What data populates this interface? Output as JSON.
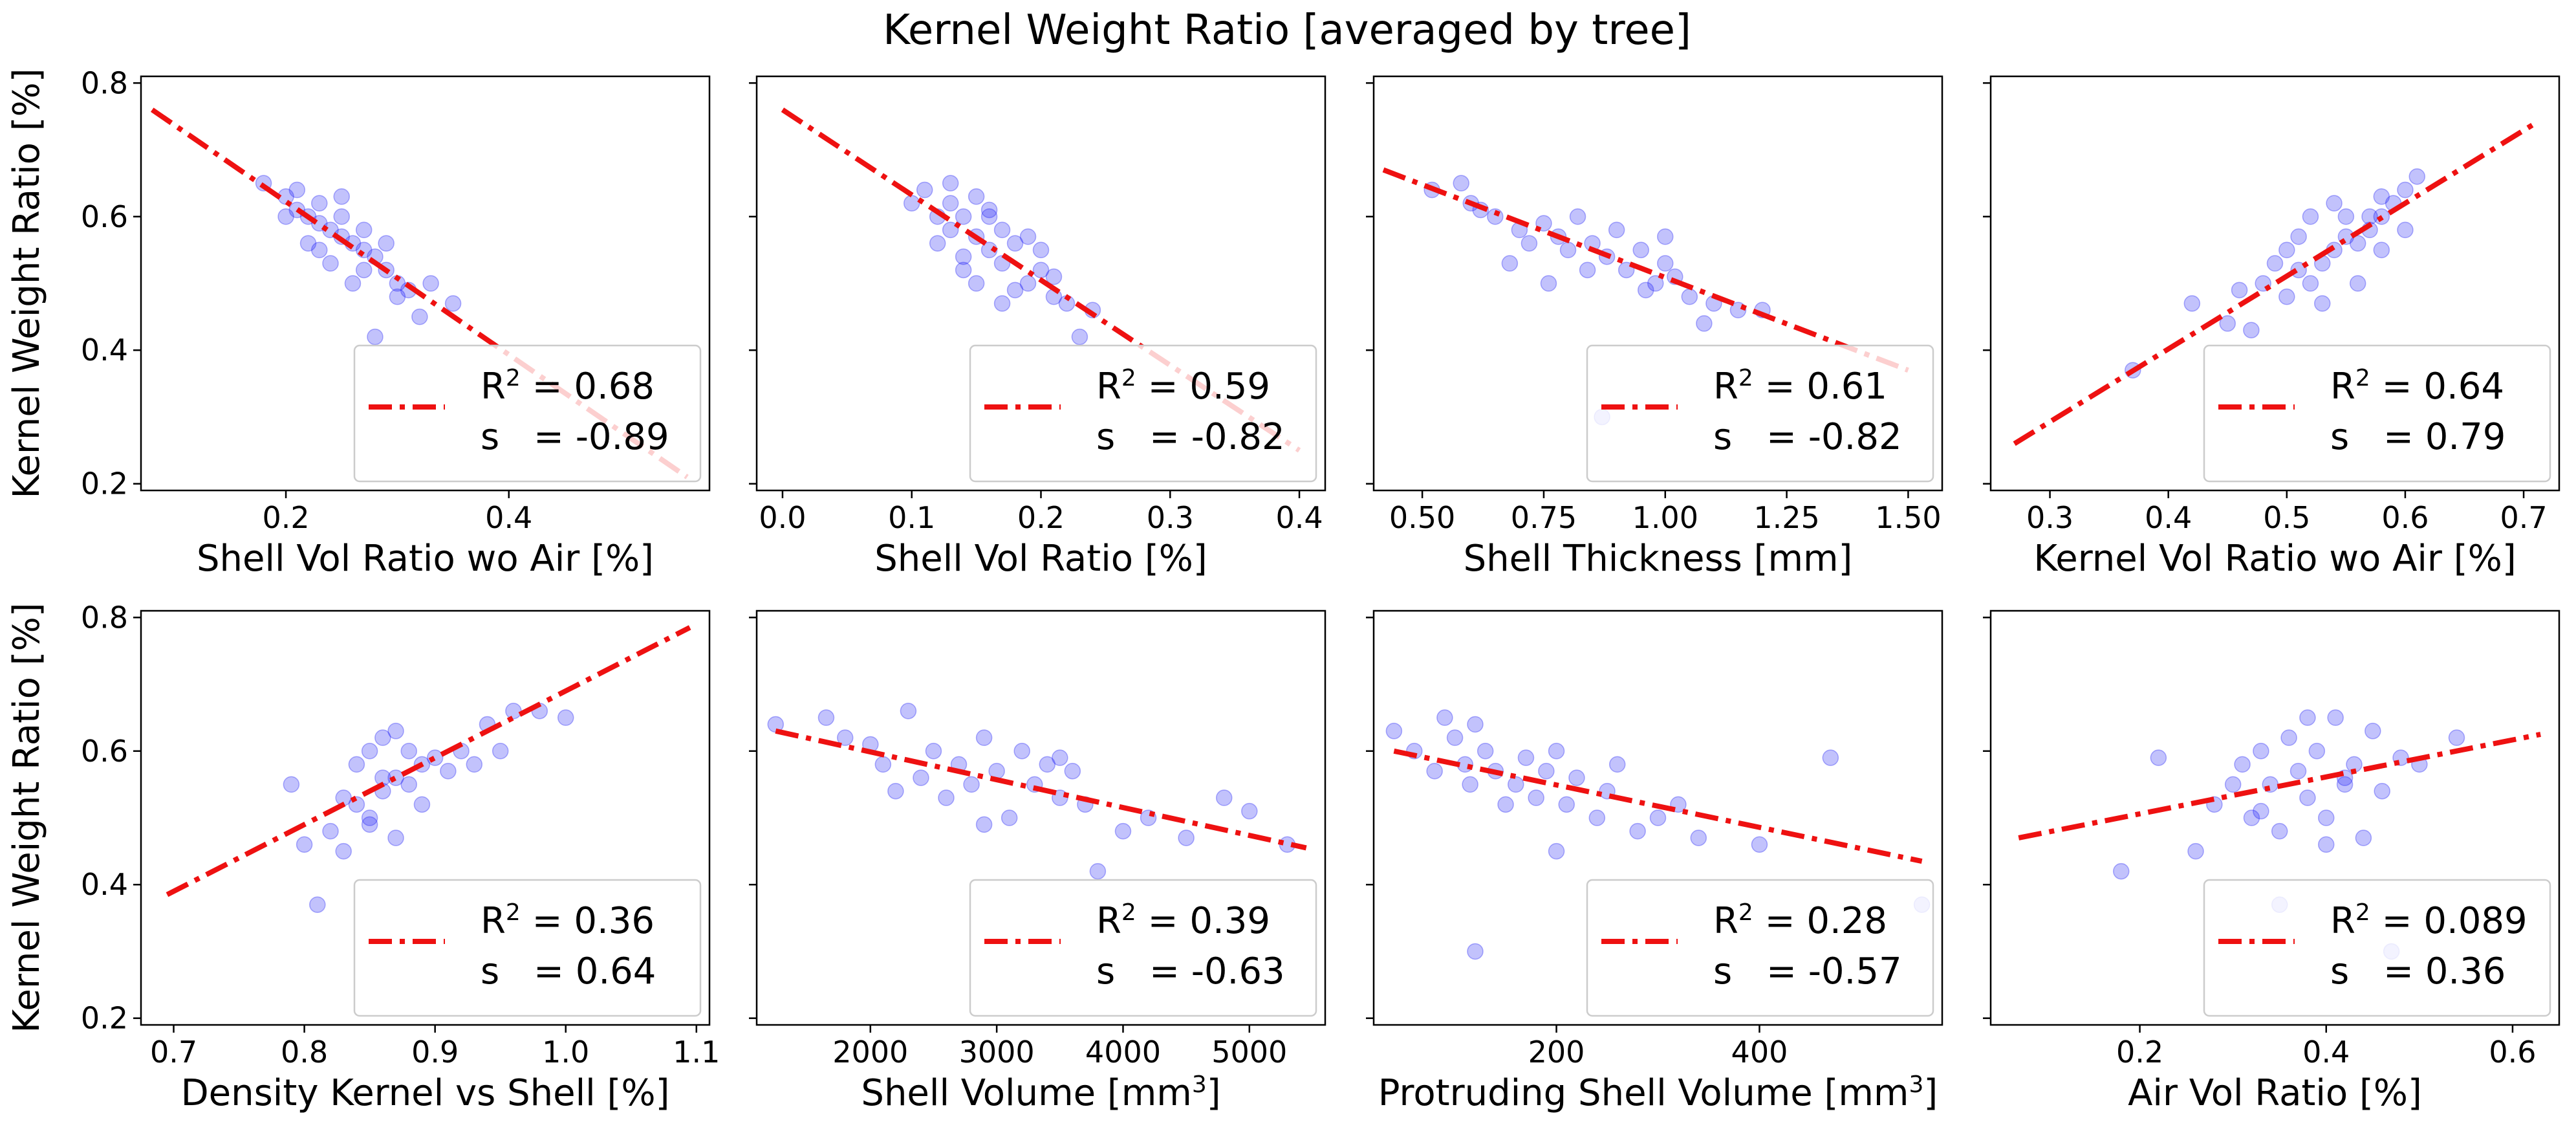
{
  "figure": {
    "title": "Kernel Weight Ratio [averaged by tree]"
  },
  "chart_data": [
    {
      "type": "scatter",
      "xlabel": "Shell Vol Ratio wo Air [%]",
      "ylabel": "Kernel Weight Ratio [%]",
      "xlim": [
        0.07,
        0.58
      ],
      "ylim": [
        0.19,
        0.81
      ],
      "xticks": [
        0.2,
        0.4
      ],
      "xtick_labels": [
        "0.2",
        "0.4"
      ],
      "yticks": [
        0.2,
        0.4,
        0.6,
        0.8
      ],
      "ytick_labels": [
        "0.2",
        "0.4",
        "0.6",
        "0.8"
      ],
      "fit": {
        "x": [
          0.08,
          0.56
        ],
        "y": [
          0.76,
          0.21
        ]
      },
      "legend": {
        "r2_label": "R",
        "r2_sup": "2",
        "r2_value": "= 0.68",
        "s_label": "s",
        "s_value": "= -0.89"
      },
      "series": [
        {
          "x": [
            0.18,
            0.2,
            0.21,
            0.21,
            0.22,
            0.23,
            0.23,
            0.24,
            0.25,
            0.25,
            0.26,
            0.27,
            0.28,
            0.29,
            0.3,
            0.31,
            0.35,
            0.28,
            0.26,
            0.22,
            0.24,
            0.27,
            0.29,
            0.33,
            0.2,
            0.23,
            0.25,
            0.27,
            0.3,
            0.32
          ],
          "y": [
            0.65,
            0.63,
            0.61,
            0.64,
            0.6,
            0.59,
            0.62,
            0.58,
            0.57,
            0.6,
            0.56,
            0.55,
            0.54,
            0.52,
            0.5,
            0.49,
            0.47,
            0.42,
            0.5,
            0.56,
            0.53,
            0.58,
            0.56,
            0.5,
            0.6,
            0.55,
            0.63,
            0.52,
            0.48,
            0.45
          ]
        }
      ]
    },
    {
      "type": "scatter",
      "xlabel": "Shell Vol Ratio [%]",
      "ylabel": "",
      "xlim": [
        -0.02,
        0.42
      ],
      "ylim": [
        0.19,
        0.81
      ],
      "xticks": [
        0.0,
        0.1,
        0.2,
        0.3,
        0.4
      ],
      "xtick_labels": [
        "0.0",
        "0.1",
        "0.2",
        "0.3",
        "0.4"
      ],
      "yticks": [
        0.2,
        0.4,
        0.6,
        0.8
      ],
      "ytick_labels": [
        "",
        "",
        "",
        ""
      ],
      "fit": {
        "x": [
          0.0,
          0.4
        ],
        "y": [
          0.76,
          0.25
        ]
      },
      "legend": {
        "r2_label": "R",
        "r2_sup": "2",
        "r2_value": "= 0.59",
        "s_label": "s",
        "s_value": "= -0.82"
      },
      "series": [
        {
          "x": [
            0.1,
            0.11,
            0.12,
            0.13,
            0.13,
            0.14,
            0.15,
            0.15,
            0.16,
            0.17,
            0.17,
            0.18,
            0.19,
            0.2,
            0.21,
            0.22,
            0.24,
            0.12,
            0.14,
            0.16,
            0.18,
            0.2,
            0.15,
            0.13,
            0.17,
            0.19,
            0.21,
            0.23,
            0.14,
            0.16
          ],
          "y": [
            0.62,
            0.64,
            0.6,
            0.62,
            0.58,
            0.6,
            0.57,
            0.63,
            0.55,
            0.58,
            0.53,
            0.56,
            0.5,
            0.52,
            0.48,
            0.47,
            0.46,
            0.56,
            0.52,
            0.6,
            0.49,
            0.55,
            0.5,
            0.65,
            0.47,
            0.57,
            0.51,
            0.42,
            0.54,
            0.61
          ]
        }
      ]
    },
    {
      "type": "scatter",
      "xlabel": "Shell Thickness [mm]",
      "ylabel": "",
      "xlim": [
        0.4,
        1.57
      ],
      "ylim": [
        0.19,
        0.81
      ],
      "xticks": [
        0.5,
        0.75,
        1.0,
        1.25,
        1.5
      ],
      "xtick_labels": [
        "0.50",
        "0.75",
        "1.00",
        "1.25",
        "1.50"
      ],
      "yticks": [
        0.2,
        0.4,
        0.6,
        0.8
      ],
      "ytick_labels": [
        "",
        "",
        "",
        ""
      ],
      "fit": {
        "x": [
          0.42,
          1.5
        ],
        "y": [
          0.67,
          0.37
        ]
      },
      "legend": {
        "r2_label": "R",
        "r2_sup": "2",
        "r2_value": "= 0.61",
        "s_label": "s",
        "s_value": "= -0.82"
      },
      "series": [
        {
          "x": [
            0.52,
            0.58,
            0.62,
            0.65,
            0.7,
            0.72,
            0.75,
            0.78,
            0.8,
            0.82,
            0.85,
            0.88,
            0.9,
            0.92,
            0.95,
            0.98,
            1.0,
            1.02,
            1.05,
            1.1,
            1.15,
            1.2,
            0.68,
            0.76,
            0.84,
            0.96,
            1.08,
            0.6,
            0.87,
            1.0
          ],
          "y": [
            0.64,
            0.65,
            0.61,
            0.6,
            0.58,
            0.56,
            0.59,
            0.57,
            0.55,
            0.6,
            0.56,
            0.54,
            0.58,
            0.52,
            0.55,
            0.5,
            0.53,
            0.51,
            0.48,
            0.47,
            0.46,
            0.46,
            0.53,
            0.5,
            0.52,
            0.49,
            0.44,
            0.62,
            0.3,
            0.57
          ]
        }
      ]
    },
    {
      "type": "scatter",
      "xlabel": "Kernel Vol Ratio wo Air [%]",
      "ylabel": "",
      "xlim": [
        0.25,
        0.73
      ],
      "ylim": [
        0.19,
        0.81
      ],
      "xticks": [
        0.3,
        0.4,
        0.5,
        0.6,
        0.7
      ],
      "xtick_labels": [
        "0.3",
        "0.4",
        "0.5",
        "0.6",
        "0.7"
      ],
      "yticks": [
        0.2,
        0.4,
        0.6,
        0.8
      ],
      "ytick_labels": [
        "",
        "",
        "",
        ""
      ],
      "fit": {
        "x": [
          0.27,
          0.71
        ],
        "y": [
          0.26,
          0.74
        ]
      },
      "legend": {
        "r2_label": "R",
        "r2_sup": "2",
        "r2_value": "= 0.64",
        "s_label": "s",
        "s_value": "= 0.79"
      },
      "series": [
        {
          "x": [
            0.37,
            0.42,
            0.45,
            0.47,
            0.48,
            0.5,
            0.5,
            0.51,
            0.52,
            0.52,
            0.53,
            0.54,
            0.55,
            0.55,
            0.56,
            0.57,
            0.58,
            0.58,
            0.59,
            0.6,
            0.61,
            0.49,
            0.53,
            0.56,
            0.58,
            0.51,
            0.54,
            0.57,
            0.6,
            0.46
          ],
          "y": [
            0.37,
            0.47,
            0.44,
            0.43,
            0.5,
            0.48,
            0.55,
            0.52,
            0.5,
            0.6,
            0.53,
            0.55,
            0.57,
            0.6,
            0.56,
            0.58,
            0.6,
            0.63,
            0.62,
            0.64,
            0.66,
            0.53,
            0.47,
            0.5,
            0.55,
            0.57,
            0.62,
            0.6,
            0.58,
            0.49
          ]
        }
      ]
    },
    {
      "type": "scatter",
      "xlabel": "Density Kernel vs Shell [%]",
      "ylabel": "Kernel Weight Ratio [%]",
      "xlim": [
        0.675,
        1.11
      ],
      "ylim": [
        0.19,
        0.81
      ],
      "xticks": [
        0.7,
        0.8,
        0.9,
        1.0,
        1.1
      ],
      "xtick_labels": [
        "0.7",
        "0.8",
        "0.9",
        "1.0",
        "1.1"
      ],
      "yticks": [
        0.2,
        0.4,
        0.6,
        0.8
      ],
      "ytick_labels": [
        "0.2",
        "0.4",
        "0.6",
        "0.8"
      ],
      "fit": {
        "x": [
          0.695,
          1.095
        ],
        "y": [
          0.385,
          0.785
        ]
      },
      "legend": {
        "r2_label": "R",
        "r2_sup": "2",
        "r2_value": "= 0.36",
        "s_label": "s",
        "s_value": "= 0.64"
      },
      "series": [
        {
          "x": [
            0.79,
            0.8,
            0.81,
            0.82,
            0.83,
            0.84,
            0.84,
            0.85,
            0.85,
            0.86,
            0.86,
            0.87,
            0.87,
            0.88,
            0.88,
            0.89,
            0.9,
            0.91,
            0.92,
            0.94,
            0.96,
            0.98,
            1.0,
            0.83,
            0.85,
            0.86,
            0.87,
            0.89,
            0.93,
            0.95
          ],
          "y": [
            0.55,
            0.46,
            0.37,
            0.48,
            0.45,
            0.52,
            0.58,
            0.5,
            0.6,
            0.54,
            0.62,
            0.47,
            0.56,
            0.55,
            0.6,
            0.58,
            0.59,
            0.57,
            0.6,
            0.64,
            0.66,
            0.66,
            0.65,
            0.53,
            0.49,
            0.56,
            0.63,
            0.52,
            0.58,
            0.6
          ]
        }
      ]
    },
    {
      "type": "scatter",
      "xlabel": "Shell Volume [mm",
      "xlabel_sup": "3",
      "xlabel_end": "]",
      "ylabel": "",
      "xlim": [
        1100,
        5600
      ],
      "ylim": [
        0.19,
        0.81
      ],
      "xticks": [
        2000,
        3000,
        4000,
        5000
      ],
      "xtick_labels": [
        "2000",
        "3000",
        "4000",
        "5000"
      ],
      "yticks": [
        0.2,
        0.4,
        0.6,
        0.8
      ],
      "ytick_labels": [
        "",
        "",
        "",
        ""
      ],
      "fit": {
        "x": [
          1250,
          5450
        ],
        "y": [
          0.63,
          0.455
        ]
      },
      "legend": {
        "r2_label": "R",
        "r2_sup": "2",
        "r2_value": "= 0.39",
        "s_label": "s",
        "s_value": "= -0.63"
      },
      "series": [
        {
          "x": [
            1250,
            1650,
            1800,
            2000,
            2100,
            2300,
            2400,
            2500,
            2600,
            2700,
            2800,
            2900,
            3000,
            3100,
            3200,
            3300,
            3400,
            3500,
            3600,
            3700,
            3800,
            4000,
            4200,
            4500,
            4800,
            5000,
            5300,
            2200,
            2900,
            3500
          ],
          "y": [
            0.64,
            0.65,
            0.62,
            0.61,
            0.58,
            0.66,
            0.56,
            0.6,
            0.53,
            0.58,
            0.55,
            0.62,
            0.57,
            0.5,
            0.6,
            0.55,
            0.58,
            0.53,
            0.57,
            0.52,
            0.42,
            0.48,
            0.5,
            0.47,
            0.53,
            0.51,
            0.46,
            0.54,
            0.49,
            0.59
          ]
        }
      ]
    },
    {
      "type": "scatter",
      "xlabel": "Protruding Shell Volume [mm",
      "xlabel_sup": "3",
      "xlabel_end": "]",
      "ylabel": "",
      "xlim": [
        20,
        580
      ],
      "ylim": [
        0.19,
        0.81
      ],
      "xticks": [
        200,
        400
      ],
      "xtick_labels": [
        "200",
        "400"
      ],
      "yticks": [
        0.2,
        0.4,
        0.6,
        0.8
      ],
      "ytick_labels": [
        "",
        "",
        "",
        ""
      ],
      "fit": {
        "x": [
          40,
          560
        ],
        "y": [
          0.6,
          0.435
        ]
      },
      "legend": {
        "r2_label": "R",
        "r2_sup": "2",
        "r2_value": "= 0.28",
        "s_label": "s",
        "s_value": "= -0.57"
      },
      "series": [
        {
          "x": [
            40,
            60,
            80,
            90,
            100,
            110,
            115,
            120,
            130,
            140,
            150,
            160,
            170,
            180,
            190,
            200,
            210,
            220,
            240,
            250,
            260,
            280,
            300,
            320,
            340,
            400,
            470,
            120,
            200,
            560
          ],
          "y": [
            0.63,
            0.6,
            0.57,
            0.65,
            0.62,
            0.58,
            0.55,
            0.64,
            0.6,
            0.57,
            0.52,
            0.55,
            0.59,
            0.53,
            0.57,
            0.6,
            0.52,
            0.56,
            0.5,
            0.54,
            0.58,
            0.48,
            0.5,
            0.52,
            0.47,
            0.46,
            0.59,
            0.3,
            0.45,
            0.37
          ]
        }
      ]
    },
    {
      "type": "scatter",
      "xlabel": "Air Vol Ratio [%]",
      "ylabel": "",
      "xlim": [
        0.04,
        0.65
      ],
      "ylim": [
        0.19,
        0.81
      ],
      "xticks": [
        0.2,
        0.4,
        0.6
      ],
      "xtick_labels": [
        "0.2",
        "0.4",
        "0.6"
      ],
      "yticks": [
        0.2,
        0.4,
        0.6,
        0.8
      ],
      "ytick_labels": [
        "",
        "",
        "",
        ""
      ],
      "fit": {
        "x": [
          0.07,
          0.63
        ],
        "y": [
          0.47,
          0.625
        ]
      },
      "legend": {
        "r2_label": "R",
        "r2_sup": "2",
        "r2_value": "= 0.089",
        "s_label": "s",
        "s_value": "= 0.36"
      },
      "series": [
        {
          "x": [
            0.18,
            0.22,
            0.26,
            0.28,
            0.3,
            0.31,
            0.32,
            0.33,
            0.34,
            0.35,
            0.36,
            0.37,
            0.38,
            0.39,
            0.4,
            0.41,
            0.42,
            0.43,
            0.44,
            0.45,
            0.46,
            0.48,
            0.5,
            0.54,
            0.35,
            0.38,
            0.4,
            0.42,
            0.33,
            0.47
          ],
          "y": [
            0.42,
            0.59,
            0.45,
            0.52,
            0.55,
            0.58,
            0.5,
            0.6,
            0.55,
            0.48,
            0.62,
            0.57,
            0.53,
            0.6,
            0.5,
            0.65,
            0.55,
            0.58,
            0.47,
            0.63,
            0.54,
            0.59,
            0.58,
            0.62,
            0.37,
            0.65,
            0.46,
            0.56,
            0.51,
            0.3
          ]
        }
      ]
    }
  ]
}
